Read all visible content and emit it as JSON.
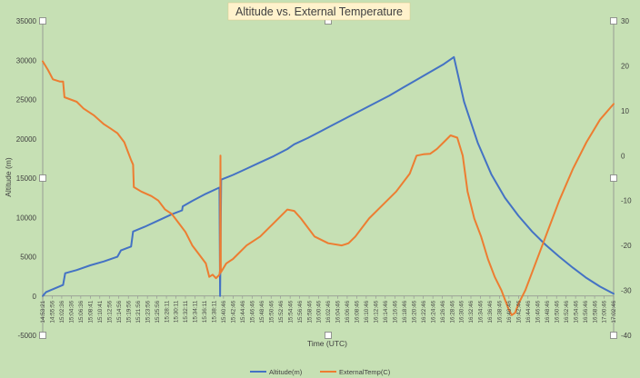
{
  "chart_data": {
    "type": "line",
    "title": "Altitude vs. External Temperature",
    "xlabel": "Time (UTC)",
    "ylabel": "Altitude (m)",
    "y2label": "",
    "ylim": [
      -5000,
      35000
    ],
    "y2lim": [
      -40,
      30
    ],
    "y_ticks": [
      "35000",
      "30000",
      "25000",
      "20000",
      "15000",
      "10000",
      "5000",
      "0",
      "-5000"
    ],
    "y2_ticks": [
      "30",
      "20",
      "10",
      "0",
      "-10",
      "-20",
      "-30",
      "-40"
    ],
    "grid": false,
    "legend_position": "bottom",
    "x_tick_labels": [
      "14:53:21",
      "14:55:56",
      "15:02:36",
      "15:04:36",
      "15:06:36",
      "15:08:41",
      "15:10:41",
      "15:12:56",
      "15:14:56",
      "15:19:56",
      "15:21:56",
      "15:23:56",
      "15:25:56",
      "15:28:11",
      "15:30:11",
      "15:32:11",
      "15:34:11",
      "15:36:11",
      "15:38:11",
      "15:40:46",
      "15:42:46",
      "15:44:46",
      "15:46:46",
      "15:48:46",
      "15:50:46",
      "15:52:46",
      "15:54:46",
      "15:56:46",
      "15:58:46",
      "16:00:46",
      "16:02:46",
      "16:04:46",
      "16:06:46",
      "16:08:46",
      "16:10:46",
      "16:12:46",
      "16:14:46",
      "16:16:46",
      "16:18:46",
      "16:20:46",
      "16:22:46",
      "16:24:46",
      "16:26:46",
      "16:28:46",
      "16:30:46",
      "16:32:46",
      "16:34:46",
      "16:36:46",
      "16:38:46",
      "16:40:46",
      "16:42:46",
      "16:44:46",
      "16:46:46",
      "16:48:46",
      "16:50:46",
      "16:52:46",
      "16:54:46",
      "16:56:46",
      "16:58:46",
      "17:00:46",
      "17:02:46"
    ],
    "series": [
      {
        "name": "Altitude(m)",
        "axis": "left",
        "color": "#4472c4",
        "points": [
          [
            0,
            0
          ],
          [
            0.5,
            500
          ],
          [
            3,
            1400
          ],
          [
            3.3,
            2900
          ],
          [
            5,
            3300
          ],
          [
            7,
            3900
          ],
          [
            9,
            4400
          ],
          [
            11,
            5000
          ],
          [
            11.5,
            5800
          ],
          [
            13,
            6300
          ],
          [
            13.3,
            8200
          ],
          [
            15,
            8800
          ],
          [
            17,
            9600
          ],
          [
            19,
            10400
          ],
          [
            20.5,
            10900
          ],
          [
            20.6,
            11400
          ],
          [
            22,
            12100
          ],
          [
            24,
            13000
          ],
          [
            26,
            13800
          ],
          [
            26.1,
            0
          ],
          [
            26.25,
            14800
          ],
          [
            28,
            15400
          ],
          [
            30,
            16200
          ],
          [
            32,
            17000
          ],
          [
            34,
            17800
          ],
          [
            36,
            18700
          ],
          [
            37,
            19300
          ],
          [
            39,
            20100
          ],
          [
            41,
            21000
          ],
          [
            43,
            21900
          ],
          [
            45,
            22800
          ],
          [
            47,
            23700
          ],
          [
            49,
            24600
          ],
          [
            51,
            25500
          ],
          [
            53,
            26500
          ],
          [
            55,
            27500
          ],
          [
            57,
            28500
          ],
          [
            59,
            29500
          ],
          [
            60.5,
            30400
          ],
          [
            62,
            24700
          ],
          [
            64,
            19500
          ],
          [
            66,
            15500
          ],
          [
            68,
            12500
          ],
          [
            70,
            10200
          ],
          [
            72,
            8200
          ],
          [
            74,
            6500
          ],
          [
            76,
            5000
          ],
          [
            78,
            3600
          ],
          [
            80,
            2300
          ],
          [
            82,
            1200
          ],
          [
            84,
            300
          ]
        ]
      },
      {
        "name": "ExternalTemp(C)",
        "axis": "right",
        "color": "#ed7d31",
        "points": [
          [
            0,
            21
          ],
          [
            0.8,
            19
          ],
          [
            1.5,
            17
          ],
          [
            2.5,
            16.5
          ],
          [
            3,
            16.5
          ],
          [
            3.2,
            13
          ],
          [
            5,
            12
          ],
          [
            6,
            10.5
          ],
          [
            7.5,
            9
          ],
          [
            9,
            7
          ],
          [
            10,
            6
          ],
          [
            11,
            5
          ],
          [
            12,
            3
          ],
          [
            13,
            -1
          ],
          [
            13.3,
            -2
          ],
          [
            13.4,
            -7
          ],
          [
            14.5,
            -8
          ],
          [
            16,
            -9
          ],
          [
            17,
            -10
          ],
          [
            18,
            -12
          ],
          [
            19,
            -13
          ],
          [
            20,
            -15
          ],
          [
            21,
            -17
          ],
          [
            22,
            -20
          ],
          [
            23,
            -22
          ],
          [
            24,
            -24
          ],
          [
            24.5,
            -27
          ],
          [
            25,
            -26.5
          ],
          [
            25.5,
            -27.3
          ],
          [
            26,
            -26.5
          ],
          [
            26.1,
            -25.5
          ],
          [
            26.15,
            0
          ],
          [
            26.2,
            -26
          ],
          [
            27,
            -24
          ],
          [
            28,
            -23
          ],
          [
            30,
            -20
          ],
          [
            32,
            -18
          ],
          [
            34,
            -15
          ],
          [
            36,
            -12
          ],
          [
            37,
            -12.3
          ],
          [
            38,
            -14
          ],
          [
            40,
            -18
          ],
          [
            42,
            -19.5
          ],
          [
            44,
            -20
          ],
          [
            45,
            -19.5
          ],
          [
            46,
            -18
          ],
          [
            48,
            -14
          ],
          [
            50,
            -11
          ],
          [
            52,
            -8
          ],
          [
            54,
            -4
          ],
          [
            55,
            0
          ],
          [
            56,
            0.3
          ],
          [
            57,
            0.4
          ],
          [
            58,
            1.5
          ],
          [
            59,
            3
          ],
          [
            60,
            4.5
          ],
          [
            61,
            4
          ],
          [
            61.8,
            0
          ],
          [
            62.5,
            -8
          ],
          [
            63.5,
            -14
          ],
          [
            64.5,
            -18
          ],
          [
            65.5,
            -23
          ],
          [
            66.5,
            -27
          ],
          [
            67.5,
            -30
          ],
          [
            68.5,
            -34
          ],
          [
            69,
            -35.5
          ],
          [
            69.5,
            -35
          ],
          [
            70,
            -33
          ],
          [
            71,
            -30
          ],
          [
            72,
            -26
          ],
          [
            74,
            -18
          ],
          [
            76,
            -10
          ],
          [
            78,
            -3
          ],
          [
            80,
            3
          ],
          [
            82,
            8
          ],
          [
            84,
            11.5
          ]
        ]
      }
    ]
  }
}
